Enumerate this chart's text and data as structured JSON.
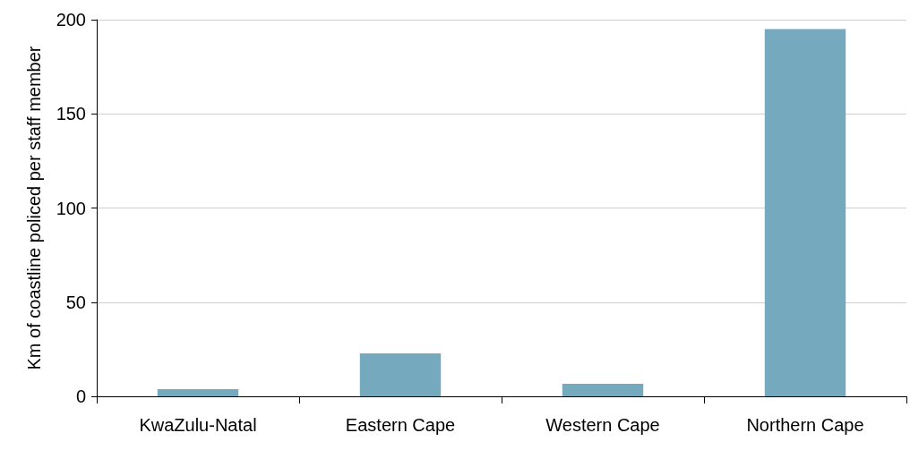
{
  "chart_data": {
    "type": "bar",
    "ylabel": "Km of coastline policed per staff member",
    "categories": [
      "KwaZulu-Natal",
      "Eastern Cape",
      "Western Cape",
      "Northern Cape"
    ],
    "values": [
      3.8,
      22.8,
      6.7,
      195
    ],
    "color": "#74a9be",
    "ylim": [
      0,
      200
    ],
    "yticks": [
      0,
      50,
      100,
      150,
      200
    ],
    "grid": "y"
  }
}
